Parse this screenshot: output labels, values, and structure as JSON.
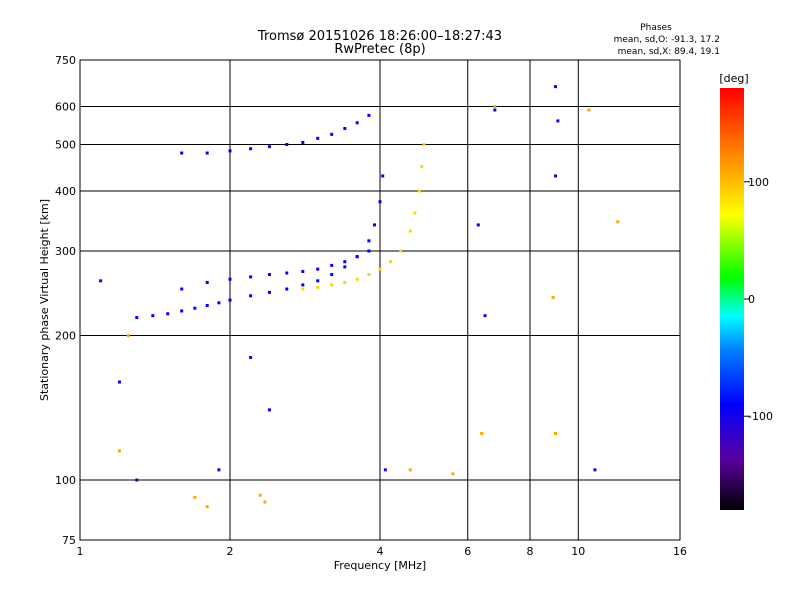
{
  "chart_data": {
    "type": "scatter",
    "title": "Tromsø 20151026 18:26:00–18:27:43",
    "subtitle": "RwPretec (8p)",
    "xlabel": "Frequency [MHz]",
    "ylabel": "Stationary phase Virtual Height [km]",
    "x_scale": "log",
    "y_scale": "log",
    "xlim": [
      1,
      16
    ],
    "ylim": [
      75,
      750
    ],
    "x_ticks": [
      1,
      2,
      4,
      6,
      8,
      10,
      16
    ],
    "x_tick_labels": [
      "1",
      "2",
      "4",
      "6",
      "8",
      "10",
      "16"
    ],
    "y_ticks": [
      75,
      100,
      200,
      300,
      400,
      500,
      600,
      750
    ],
    "y_tick_labels": [
      "75",
      "100",
      "200",
      "300",
      "400",
      "500",
      "600",
      "750"
    ],
    "grid": true,
    "stats": {
      "heading": "Phases",
      "line_o": "mean, sd,O: -91.3, 17.2",
      "line_x": "mean, sd,X: 89.4, 19.1"
    },
    "colorbar": {
      "label": "[deg]",
      "min": -180,
      "max": 180,
      "ticks": [
        100,
        0,
        -100
      ],
      "tick_labels": [
        "100",
        "0",
        "-100"
      ]
    },
    "series": [
      {
        "mode": "O",
        "phase_deg": -91.3,
        "x": [
          1.3,
          1.4,
          1.5,
          1.6,
          1.7,
          1.8,
          1.9,
          2.0,
          2.2,
          2.4,
          2.6,
          2.8,
          3.0,
          3.2,
          3.4,
          3.6,
          3.8,
          3.9,
          4.0,
          4.05
        ],
        "y": [
          218,
          220,
          222,
          225,
          228,
          231,
          234,
          237,
          242,
          246,
          250,
          255,
          260,
          268,
          278,
          292,
          315,
          340,
          380,
          430
        ]
      },
      {
        "mode": "O-upper",
        "phase_deg": -95,
        "x": [
          1.6,
          1.8,
          2.0,
          2.2,
          2.4,
          2.6,
          2.8,
          3.0,
          3.2,
          3.4,
          3.6,
          3.8
        ],
        "y": [
          250,
          258,
          262,
          265,
          268,
          270,
          272,
          275,
          280,
          285,
          292,
          300
        ]
      },
      {
        "mode": "O-second-hop",
        "phase_deg": -90,
        "x": [
          1.6,
          1.8,
          2.0,
          2.2,
          2.4,
          2.6,
          2.8,
          3.0,
          3.2,
          3.4,
          3.6,
          3.8
        ],
        "y": [
          480,
          480,
          485,
          490,
          495,
          500,
          505,
          515,
          525,
          540,
          555,
          575
        ]
      },
      {
        "mode": "X",
        "phase_deg": 89.4,
        "x": [
          2.8,
          3.0,
          3.2,
          3.4,
          3.6,
          3.8,
          4.0,
          4.2,
          4.4,
          4.6,
          4.7,
          4.8,
          4.85,
          4.9
        ],
        "y": [
          250,
          252,
          255,
          258,
          262,
          268,
          275,
          285,
          300,
          330,
          360,
          400,
          450,
          500
        ]
      },
      {
        "mode": "X-scatter",
        "phase_deg": 110,
        "x": [
          1.2,
          1.25,
          1.7,
          1.8,
          2.3,
          2.35,
          4.6,
          5.6,
          6.4,
          6.8,
          10.5,
          12.0,
          9.0,
          8.9
        ],
        "y": [
          115,
          200,
          92,
          88,
          93,
          90,
          105,
          103,
          125,
          600,
          590,
          345,
          125,
          240
        ]
      },
      {
        "mode": "O-scatter",
        "phase_deg": -100,
        "x": [
          1.1,
          1.2,
          1.3,
          1.9,
          2.2,
          2.4,
          4.1,
          6.3,
          6.5,
          6.8,
          9.0,
          9.1,
          9.0,
          10.8
        ],
        "y": [
          260,
          160,
          100,
          105,
          180,
          140,
          105,
          340,
          220,
          590,
          660,
          560,
          430,
          105
        ]
      }
    ]
  }
}
